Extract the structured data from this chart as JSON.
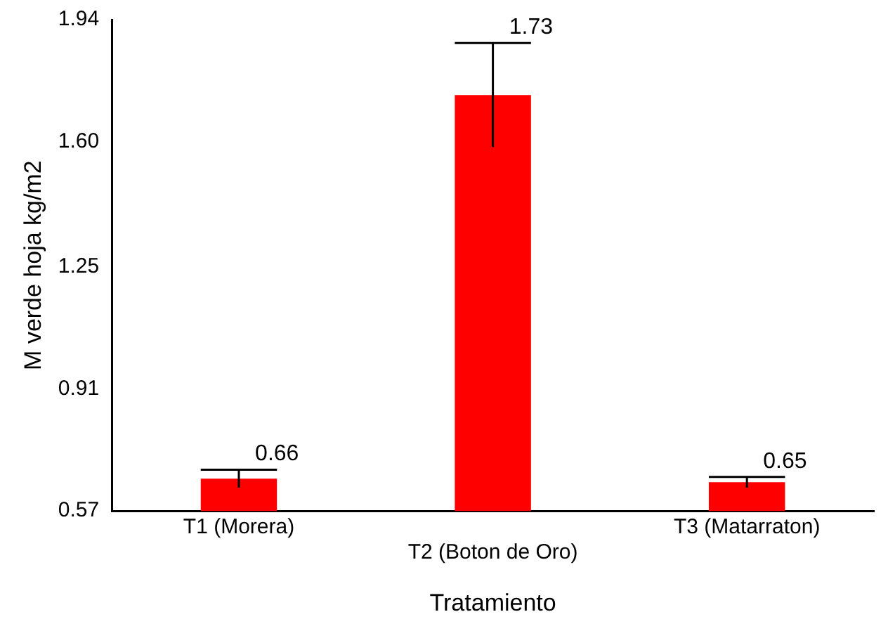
{
  "chart_data": {
    "type": "bar",
    "xlabel": "Tratamiento",
    "ylabel": "M verde hoja kg/m2",
    "categories": [
      "T1 (Morera)",
      "T2 (Boton de Oro)",
      "T3 (Matarraton)"
    ],
    "values": [
      0.66,
      1.73,
      0.65
    ],
    "errors": [
      0.025,
      0.145,
      0.015
    ],
    "color": "#ff0000",
    "ylim": [
      0.57,
      1.94
    ],
    "yticks": [
      0.57,
      0.91,
      1.25,
      {
        "value": 1.6,
        "label": "1.60"
      },
      1.94
    ],
    "data_labels": true,
    "grid": false,
    "legend": false
  }
}
